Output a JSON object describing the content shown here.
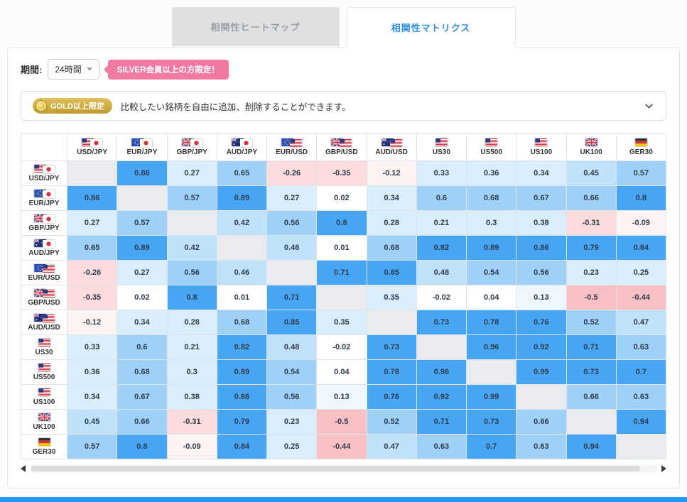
{
  "page": {
    "bottom_bar_color": "#2196f3"
  },
  "tabs": [
    {
      "label": "相関性ヒートマップ",
      "active": false
    },
    {
      "label": "相関性マトリクス",
      "active": true
    }
  ],
  "controls": {
    "period_label": "期間:",
    "period_value": "24時間",
    "silver_badge": "SILVER会員以上の方限定！"
  },
  "gold_banner": {
    "badge_label": "GOLD以上限定",
    "message": "比較したい銘柄を自由に追加、削除することができます。"
  },
  "colors": {
    "tab_active_text": "#2e8fe6",
    "tab_inactive_bg": "#e0e0e0",
    "silver_badge_bg": "#f27aa0",
    "gold_badge_from": "#e0c15d",
    "gold_badge_to": "#c19a2e"
  },
  "chart_data": {
    "type": "heatmap",
    "title": "相関性マトリクス",
    "period": "24時間",
    "categories": [
      "USD/JPY",
      "EUR/JPY",
      "GBP/JPY",
      "AUD/JPY",
      "EUR/USD",
      "GBP/USD",
      "AUD/USD",
      "US30",
      "US500",
      "US100",
      "UK100",
      "GER30"
    ],
    "flags": {
      "USD/JPY": [
        "us",
        "jp"
      ],
      "EUR/JPY": [
        "eu",
        "jp"
      ],
      "GBP/JPY": [
        "gb",
        "jp"
      ],
      "AUD/JPY": [
        "au",
        "jp"
      ],
      "EUR/USD": [
        "eu",
        "us"
      ],
      "GBP/USD": [
        "gb",
        "us"
      ],
      "AUD/USD": [
        "au",
        "us"
      ],
      "US30": [
        "us"
      ],
      "US500": [
        "us"
      ],
      "US100": [
        "us"
      ],
      "UK100": [
        "gb"
      ],
      "GER30": [
        "de"
      ]
    },
    "matrix": [
      [
        null,
        "0.86",
        "0.27",
        "0.65",
        "-0.26",
        "-0.35",
        "-0.12",
        "0.33",
        "0.36",
        "0.34",
        "0.45",
        "0.57"
      ],
      [
        "0.86",
        null,
        "0.57",
        "0.89",
        "0.27",
        "0.02",
        "0.34",
        "0.6",
        "0.68",
        "0.67",
        "0.66",
        "0.8"
      ],
      [
        "0.27",
        "0.57",
        null,
        "0.42",
        "0.56",
        "0.8",
        "0.28",
        "0.21",
        "0.3",
        "0.38",
        "-0.31",
        "-0.09"
      ],
      [
        "0.65",
        "0.89",
        "0.42",
        null,
        "0.46",
        "0.01",
        "0.68",
        "0.82",
        "0.89",
        "0.86",
        "0.79",
        "0.84"
      ],
      [
        "-0.26",
        "0.27",
        "0.56",
        "0.46",
        null,
        "0.71",
        "0.85",
        "0.48",
        "0.54",
        "0.56",
        "0.23",
        "0.25"
      ],
      [
        "-0.35",
        "0.02",
        "0.8",
        "0.01",
        "0.71",
        null,
        "0.35",
        "-0.02",
        "0.04",
        "0.13",
        "-0.5",
        "-0.44"
      ],
      [
        "-0.12",
        "0.34",
        "0.28",
        "0.68",
        "0.85",
        "0.35",
        null,
        "0.73",
        "0.78",
        "0.76",
        "0.52",
        "0.47"
      ],
      [
        "0.33",
        "0.6",
        "0.21",
        "0.82",
        "0.48",
        "-0.02",
        "0.73",
        null,
        "0.96",
        "0.92",
        "0.71",
        "0.63"
      ],
      [
        "0.36",
        "0.68",
        "0.3",
        "0.89",
        "0.54",
        "0.04",
        "0.78",
        "0.96",
        null,
        "0.99",
        "0.73",
        "0.7"
      ],
      [
        "0.34",
        "0.67",
        "0.38",
        "0.86",
        "0.56",
        "0.13",
        "0.76",
        "0.92",
        "0.99",
        null,
        "0.66",
        "0.63"
      ],
      [
        "0.45",
        "0.66",
        "-0.31",
        "0.79",
        "0.23",
        "-0.5",
        "0.52",
        "0.71",
        "0.73",
        "0.66",
        null,
        "0.94"
      ],
      [
        "0.57",
        "0.8",
        "-0.09",
        "0.84",
        "0.25",
        "-0.44",
        "0.47",
        "0.63",
        "0.7",
        "0.63",
        "0.94",
        null
      ]
    ],
    "color_scale": [
      {
        "min": 0.7,
        "color": "#47a6f4"
      },
      {
        "min": 0.5,
        "color": "#9fd1f8"
      },
      {
        "min": 0.4,
        "color": "#c0e1fa"
      },
      {
        "min": 0.2,
        "color": "#d9edfc"
      },
      {
        "min": 0.05,
        "color": "#eef7fe"
      },
      {
        "min": -0.05,
        "color": "#ffffff"
      },
      {
        "min": -0.2,
        "color": "#fdf3f3"
      },
      {
        "min": -0.4,
        "color": "#fbdbdb"
      },
      {
        "min": -1,
        "color": "#f9c0c4"
      }
    ],
    "diagonal_color": "#e9ebee"
  }
}
